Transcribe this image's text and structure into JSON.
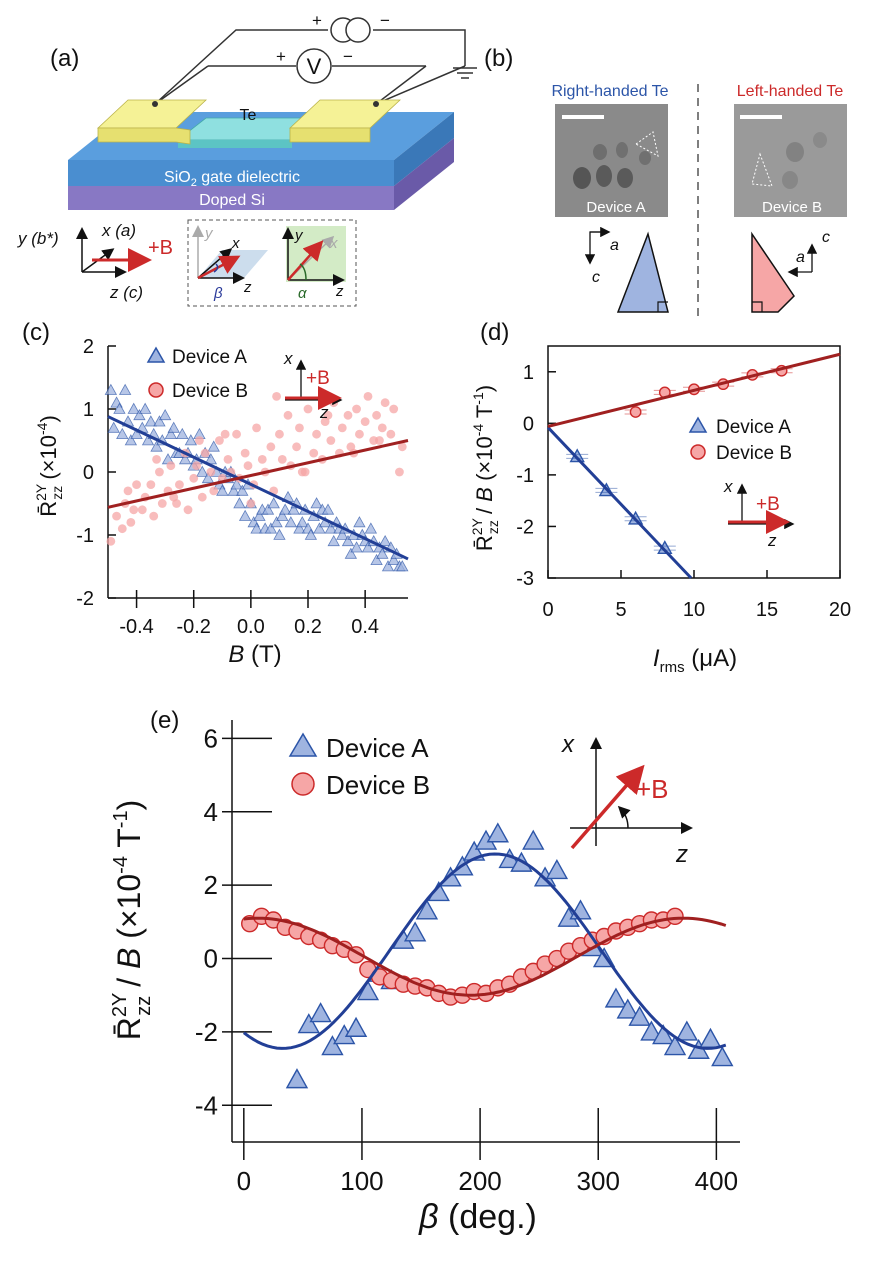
{
  "panel_labels": {
    "a": "(a)",
    "b": "(b)",
    "c": "(c)",
    "d": "(d)",
    "e": "(e)"
  },
  "panel_a": {
    "material_label": "Te",
    "gate_dielectric": "SiO",
    "gate_dielectric_sub": "2",
    "gate_dielectric_rest": " gate dielectric",
    "substrate": "Doped Si",
    "voltmeter": "V",
    "plus": "+",
    "minus": "−",
    "axes": {
      "y": "y (b*)",
      "x": "x (a)",
      "z": "z (c)",
      "field": "+B"
    },
    "inset": {
      "y": "y",
      "x": "x",
      "z": "z",
      "beta": "β",
      "alpha": "α"
    },
    "colors": {
      "contact": "#f2ef8a",
      "channel": "#7fd6d6",
      "dielectric": "#4a8ed0",
      "substrate": "#8878c4",
      "field": "#cc2a2a",
      "beta": "#2a3a9a",
      "alpha": "#2a6a2a"
    }
  },
  "panel_b": {
    "right_title": "Right-handed Te",
    "left_title": "Left-handed Te",
    "right_device": "Device A",
    "left_device": "Device B",
    "axis_a": "a",
    "axis_c": "c",
    "colors": {
      "right": "#2c55a8",
      "left": "#cc2a2a",
      "right_fill": "#9fb4e0",
      "left_fill": "#f6a6a6"
    }
  },
  "chart_data": [
    {
      "id": "c",
      "type": "scatter",
      "ylabel": "R̄zz2Y (×10-4)",
      "xlabel": "B (T)",
      "xlim": [
        -0.5,
        0.55
      ],
      "ylim": [
        -2,
        2
      ],
      "xticks": [
        "-0.4",
        "-0.2",
        "0.0",
        "0.2",
        "0.4"
      ],
      "xtick_values": [
        -0.4,
        -0.2,
        0.0,
        0.2,
        0.4
      ],
      "yticks": [
        "-2",
        "-1",
        "0",
        "1",
        "2"
      ],
      "ytick_values": [
        -2,
        -1,
        0,
        1,
        2
      ],
      "legend": [
        "Device A",
        "Device B"
      ],
      "inset": {
        "x": "x",
        "z": "z",
        "field": "+B"
      },
      "series": [
        {
          "name": "Device A",
          "marker": "triangle",
          "x": [
            -0.49,
            -0.48,
            -0.47,
            -0.46,
            -0.45,
            -0.44,
            -0.43,
            -0.42,
            -0.41,
            -0.4,
            -0.39,
            -0.38,
            -0.37,
            -0.36,
            -0.35,
            -0.34,
            -0.33,
            -0.32,
            -0.31,
            -0.3,
            -0.29,
            -0.28,
            -0.27,
            -0.26,
            -0.25,
            -0.24,
            -0.23,
            -0.22,
            -0.21,
            -0.2,
            -0.19,
            -0.18,
            -0.17,
            -0.16,
            -0.15,
            -0.14,
            -0.13,
            -0.12,
            -0.11,
            -0.1,
            -0.09,
            -0.08,
            -0.07,
            -0.06,
            -0.05,
            -0.04,
            -0.03,
            -0.02,
            -0.01,
            0.0,
            0.01,
            0.02,
            0.03,
            0.04,
            0.05,
            0.06,
            0.07,
            0.08,
            0.09,
            0.1,
            0.11,
            0.12,
            0.13,
            0.14,
            0.15,
            0.16,
            0.17,
            0.18,
            0.19,
            0.2,
            0.21,
            0.22,
            0.23,
            0.24,
            0.25,
            0.26,
            0.27,
            0.28,
            0.29,
            0.3,
            0.31,
            0.32,
            0.33,
            0.34,
            0.35,
            0.36,
            0.37,
            0.38,
            0.39,
            0.4,
            0.41,
            0.42,
            0.43,
            0.44,
            0.45,
            0.46,
            0.47,
            0.48,
            0.49,
            0.5,
            0.51,
            0.52,
            0.53
          ],
          "y": [
            1.3,
            0.7,
            1.1,
            1.0,
            0.6,
            1.3,
            0.8,
            0.5,
            1.0,
            0.6,
            0.9,
            0.7,
            1.0,
            0.5,
            0.8,
            0.6,
            0.4,
            0.8,
            0.5,
            0.9,
            0.2,
            0.6,
            0.7,
            0.3,
            0.3,
            0.6,
            0.2,
            0.3,
            0.5,
            0.1,
            0.2,
            0.6,
            0.0,
            0.3,
            -0.1,
            0.2,
            0.4,
            0.0,
            -0.2,
            -0.3,
            0.0,
            -0.1,
            0.0,
            -0.3,
            -0.2,
            -0.5,
            -0.3,
            -0.7,
            -0.2,
            -0.5,
            -0.8,
            -0.9,
            -0.7,
            -0.6,
            -0.9,
            -0.6,
            -0.9,
            -0.5,
            -0.8,
            -1.0,
            -0.7,
            -0.6,
            -0.4,
            -0.8,
            -0.6,
            -0.5,
            -0.9,
            -0.8,
            -0.6,
            -0.9,
            -1.0,
            -0.7,
            -0.5,
            -0.9,
            -0.6,
            -0.8,
            -0.6,
            -0.9,
            -1.1,
            -0.8,
            -0.9,
            -1.0,
            -0.9,
            -1.1,
            -1.3,
            -1.0,
            -1.2,
            -0.8,
            -1.0,
            -1.1,
            -1.2,
            -0.9,
            -1.1,
            -1.4,
            -1.2,
            -1.3,
            -1.1,
            -1.5,
            -1.2,
            -1.4,
            -1.3,
            -1.5,
            -1.5
          ]
        },
        {
          "name": "Device B",
          "marker": "circle",
          "x": [
            -0.49,
            -0.47,
            -0.45,
            -0.44,
            -0.43,
            -0.41,
            -0.4,
            -0.38,
            -0.37,
            -0.35,
            -0.34,
            -0.32,
            -0.31,
            -0.29,
            -0.28,
            -0.26,
            -0.25,
            -0.23,
            -0.22,
            -0.2,
            -0.19,
            -0.17,
            -0.16,
            -0.14,
            -0.13,
            -0.11,
            -0.1,
            -0.08,
            -0.07,
            -0.05,
            -0.04,
            -0.02,
            -0.01,
            0.01,
            0.02,
            0.04,
            0.05,
            0.07,
            0.08,
            0.1,
            0.11,
            0.13,
            0.14,
            0.16,
            0.17,
            0.19,
            0.2,
            0.22,
            0.23,
            0.25,
            0.26,
            0.28,
            0.29,
            0.31,
            0.32,
            0.34,
            0.35,
            0.37,
            0.38,
            0.4,
            0.41,
            0.43,
            0.44,
            0.46,
            0.47,
            0.49,
            0.5,
            0.52,
            0.53,
            -0.42,
            -0.33,
            -0.27,
            -0.18,
            -0.09,
            0.0,
            0.09,
            0.18,
            0.27,
            0.36,
            0.45
          ],
          "y": [
            -1.1,
            -0.7,
            -0.9,
            -0.5,
            -0.3,
            -0.6,
            -0.2,
            -0.6,
            -0.4,
            -0.2,
            -0.7,
            0.0,
            -0.5,
            -0.3,
            0.1,
            -0.5,
            -0.2,
            0.3,
            -0.6,
            -0.1,
            0.1,
            -0.4,
            0.3,
            0.0,
            -0.3,
            0.5,
            -0.1,
            0.2,
            0.0,
            0.6,
            -0.1,
            0.3,
            0.1,
            -0.2,
            0.7,
            0.2,
            0.0,
            0.4,
            -0.3,
            0.6,
            0.2,
            0.9,
            0.1,
            0.4,
            0.7,
            0.0,
            1.0,
            0.3,
            0.6,
            0.2,
            0.8,
            0.5,
            1.1,
            0.3,
            0.7,
            0.9,
            0.4,
            1.0,
            0.6,
            0.8,
            1.2,
            0.5,
            0.9,
            0.7,
            1.1,
            0.6,
            1.0,
            0.0,
            0.4,
            -0.8,
            0.2,
            -0.4,
            0.5,
            0.6,
            -0.5,
            1.2,
            0.0,
            0.9,
            0.3,
            0.5
          ]
        }
      ],
      "fits": [
        {
          "name": "Device A fit",
          "x": [
            -0.5,
            0.55
          ],
          "y": [
            0.88,
            -1.38
          ],
          "color": "#223f96"
        },
        {
          "name": "Device B fit",
          "x": [
            -0.5,
            0.55
          ],
          "y": [
            -0.56,
            0.5
          ],
          "color": "#a02020"
        }
      ]
    },
    {
      "id": "d",
      "type": "scatter",
      "ylabel": "R̄zz2Y / B (×10-4 T-1)",
      "xlabel": "Irms (μA)",
      "xlim": [
        0,
        20
      ],
      "ylim": [
        -3,
        1.5
      ],
      "xticks": [
        "0",
        "5",
        "10",
        "15",
        "20"
      ],
      "xtick_values": [
        0,
        5,
        10,
        15,
        20
      ],
      "yticks": [
        "-3",
        "-2",
        "-1",
        "0",
        "1"
      ],
      "ytick_values": [
        -3,
        -2,
        -1,
        0,
        1
      ],
      "legend": [
        "Device A",
        "Device B"
      ],
      "inset": {
        "x": "x",
        "z": "z",
        "field": "+B"
      },
      "series": [
        {
          "name": "Device A",
          "marker": "triangle",
          "x": [
            2,
            4,
            6,
            8
          ],
          "y": [
            -0.64,
            -1.3,
            -1.85,
            -2.42
          ]
        },
        {
          "name": "Device B",
          "marker": "circle",
          "x": [
            6,
            8,
            10,
            12,
            14,
            16
          ],
          "y": [
            0.22,
            0.6,
            0.66,
            0.76,
            0.94,
            1.02
          ]
        }
      ],
      "fits": [
        {
          "name": "Device A fit",
          "x": [
            0,
            9.8
          ],
          "y": [
            -0.08,
            -3.0
          ],
          "color": "#223f96"
        },
        {
          "name": "Device B fit",
          "x": [
            0,
            20
          ],
          "y": [
            -0.06,
            1.34
          ],
          "color": "#a02020"
        }
      ]
    },
    {
      "id": "e",
      "type": "scatter",
      "ylabel": "R̄zz2Y / B (×10-4 T-1)",
      "xlabel": "β (deg.)",
      "xlim": [
        -10,
        420
      ],
      "ylim": [
        -5,
        6.5
      ],
      "xticks": [
        "0",
        "100",
        "200",
        "300",
        "400"
      ],
      "xtick_values": [
        0,
        100,
        200,
        300,
        400
      ],
      "yticks": [
        "-4",
        "-2",
        "0",
        "2",
        "4",
        "6"
      ],
      "ytick_values": [
        -4,
        -2,
        0,
        2,
        4,
        6
      ],
      "legend": [
        "Device A",
        "Device B"
      ],
      "inset": {
        "x": "x",
        "z": "z",
        "field": "+B"
      },
      "series": [
        {
          "name": "Device A",
          "marker": "triangle",
          "x": [
            45,
            55,
            65,
            75,
            85,
            95,
            105,
            115,
            125,
            135,
            145,
            155,
            165,
            175,
            185,
            195,
            205,
            215,
            225,
            235,
            245,
            255,
            265,
            275,
            285,
            295,
            305,
            315,
            325,
            335,
            345,
            355,
            365,
            375,
            385,
            395,
            405
          ],
          "y": [
            -3.3,
            -1.8,
            -1.5,
            -2.4,
            -2.1,
            -1.9,
            -0.9,
            -0.4,
            -0.6,
            0.5,
            0.7,
            1.3,
            1.8,
            2.2,
            2.5,
            2.9,
            3.2,
            3.4,
            2.7,
            2.6,
            3.2,
            2.2,
            2.4,
            1.1,
            1.3,
            0.3,
            0.0,
            -1.1,
            -1.4,
            -1.6,
            -2.0,
            -2.1,
            -2.4,
            -2.0,
            -2.5,
            -2.2,
            -2.7
          ]
        },
        {
          "name": "Device B",
          "marker": "circle",
          "x": [
            5,
            15,
            25,
            35,
            45,
            55,
            65,
            75,
            85,
            95,
            105,
            115,
            125,
            135,
            145,
            155,
            165,
            175,
            185,
            195,
            205,
            215,
            225,
            235,
            245,
            255,
            265,
            275,
            285,
            295,
            305,
            315,
            325,
            335,
            345,
            355,
            365
          ],
          "y": [
            0.95,
            1.15,
            1.05,
            0.85,
            0.75,
            0.6,
            0.5,
            0.35,
            0.25,
            0.1,
            -0.3,
            -0.5,
            -0.6,
            -0.7,
            -0.75,
            -0.8,
            -0.95,
            -1.05,
            -1.0,
            -0.9,
            -0.95,
            -0.8,
            -0.7,
            -0.5,
            -0.35,
            -0.15,
            0.0,
            0.2,
            0.35,
            0.5,
            0.6,
            0.75,
            0.85,
            0.95,
            1.05,
            1.05,
            1.15
          ]
        }
      ],
      "fits": [
        {
          "name": "Device A fit",
          "type": "sine",
          "offset": 0.2,
          "amplitude": 2.65,
          "phase_deg": 213,
          "x": [
            0,
            410
          ],
          "color": "#223f96"
        },
        {
          "name": "Device B fit",
          "type": "sine",
          "offset": 0.05,
          "amplitude": 1.05,
          "phase_deg": 12,
          "x": [
            0,
            410
          ],
          "color": "#a02020"
        }
      ]
    }
  ]
}
